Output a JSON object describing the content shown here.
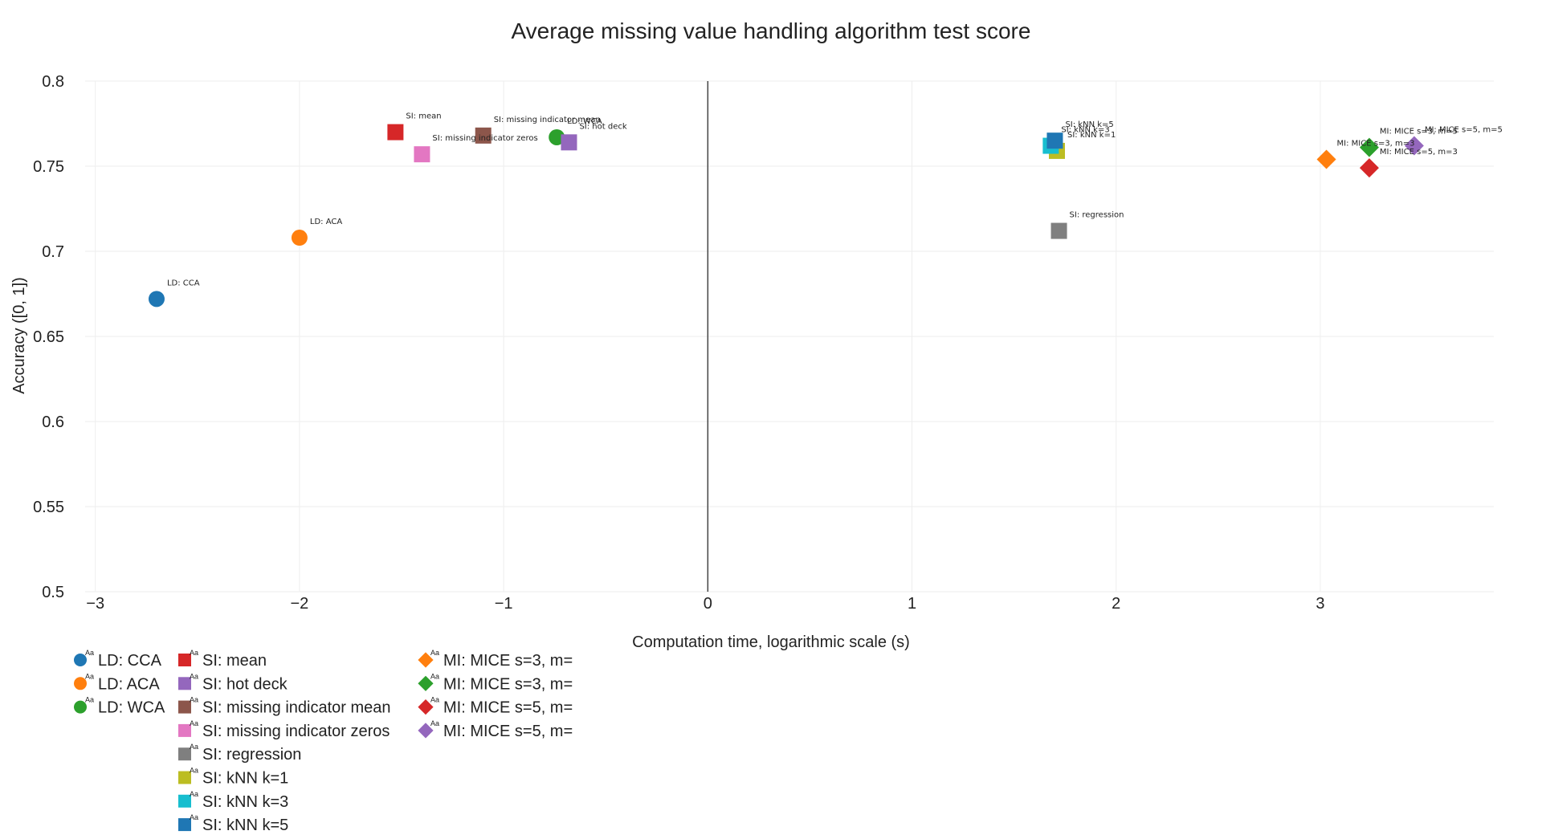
{
  "chart_data": {
    "type": "scatter",
    "title": "Average missing value handling algorithm test score",
    "xlabel": "Computation time, logarithmic scale (s)",
    "ylabel": "Accuracy ([0, 1])",
    "xlim": [
      -3.05,
      3.85
    ],
    "ylim": [
      0.5,
      0.8
    ],
    "xticks": [
      -3,
      -2,
      -1,
      0,
      1,
      2,
      3
    ],
    "xtick_labels": [
      "−3",
      "−2",
      "−1",
      "0",
      "1",
      "2",
      "3"
    ],
    "yticks": [
      0.5,
      0.55,
      0.6,
      0.65,
      0.7,
      0.75,
      0.8
    ],
    "ytick_labels": [
      "0.5",
      "0.55",
      "0.6",
      "0.65",
      "0.7",
      "0.75",
      "0.8"
    ],
    "grid": true,
    "legend_position": "bottom-left",
    "series": [
      {
        "name": "LD: CCA",
        "color": "#1f77b4",
        "symbol": "circle",
        "x": -2.7,
        "y": 0.672,
        "label": "LD: CCA"
      },
      {
        "name": "LD: ACA",
        "color": "#ff7f0e",
        "symbol": "circle",
        "x": -2.0,
        "y": 0.708,
        "label": "LD: ACA"
      },
      {
        "name": "LD: WCA",
        "color": "#2ca02c",
        "symbol": "circle",
        "x": -0.74,
        "y": 0.767,
        "label": "LD: WCA"
      },
      {
        "name": "SI: mean",
        "color": "#d62728",
        "symbol": "square",
        "x": -1.53,
        "y": 0.77,
        "label": "SI: mean"
      },
      {
        "name": "SI: hot deck",
        "color": "#9467bd",
        "symbol": "square",
        "x": -0.68,
        "y": 0.764,
        "label": "SI: hot deck"
      },
      {
        "name": "SI: missing indicator mean",
        "color": "#8c564b",
        "symbol": "square",
        "x": -1.1,
        "y": 0.768,
        "label": "SI: missing indicator mean"
      },
      {
        "name": "SI: missing indicator zeros",
        "color": "#e377c2",
        "symbol": "square",
        "x": -1.4,
        "y": 0.757,
        "label": "SI: missing indicator zeros"
      },
      {
        "name": "SI: regression",
        "color": "#7f7f7f",
        "symbol": "square",
        "x": 1.72,
        "y": 0.712,
        "label": "SI: regression"
      },
      {
        "name": "SI: kNN k=1",
        "color": "#bcbd22",
        "symbol": "square",
        "x": 1.71,
        "y": 0.759,
        "label": "SI: kNN k=1"
      },
      {
        "name": "SI: kNN k=3",
        "color": "#17becf",
        "symbol": "square",
        "x": 1.68,
        "y": 0.762,
        "label": "SI: kNN k=3"
      },
      {
        "name": "SI: kNN k=5",
        "color": "#1f77b4",
        "symbol": "square",
        "x": 1.7,
        "y": 0.765,
        "label": "SI: kNN k=5"
      },
      {
        "name": "MI: MICE s=3, m=",
        "color": "#ff7f0e",
        "symbol": "diamond",
        "x": 3.03,
        "y": 0.754,
        "label": "MI: MICE s=3, m=3"
      },
      {
        "name": "MI: MICE s=3, m=",
        "color": "#2ca02c",
        "symbol": "diamond",
        "x": 3.24,
        "y": 0.761,
        "label": "MI: MICE s=3, m=5"
      },
      {
        "name": "MI: MICE s=5, m=",
        "color": "#d62728",
        "symbol": "diamond",
        "x": 3.24,
        "y": 0.749,
        "label": "MI: MICE s=5, m=3"
      },
      {
        "name": "MI: MICE s=5, m=",
        "color": "#9467bd",
        "symbol": "diamond",
        "x": 3.46,
        "y": 0.762,
        "label": "MI: MICE s=5, m=5"
      }
    ],
    "legend_marker_text": "Aa"
  }
}
